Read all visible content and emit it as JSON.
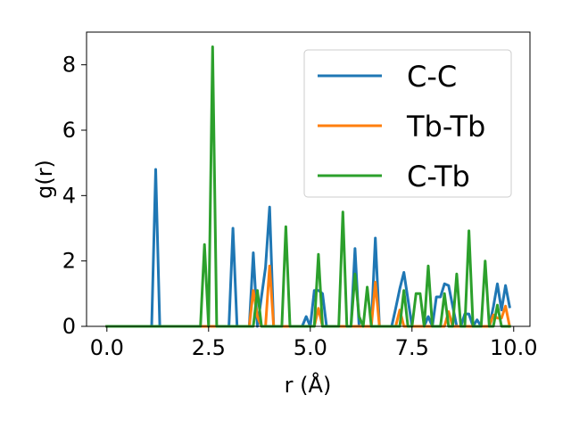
{
  "chart_data": {
    "type": "line",
    "title": "",
    "xlabel": "r (Å)",
    "ylabel": "g(r)",
    "xlim": [
      -0.5,
      10.4
    ],
    "ylim": [
      0,
      9
    ],
    "xticks": [
      0.0,
      2.5,
      5.0,
      7.5,
      10.0
    ],
    "xtick_labels": [
      "0.0",
      "2.5",
      "5.0",
      "7.5",
      "10.0"
    ],
    "yticks": [
      0,
      2,
      4,
      6,
      8
    ],
    "ytick_labels": [
      "0",
      "2",
      "4",
      "6",
      "8"
    ],
    "grid": false,
    "legend_position": "top-right",
    "series": [
      {
        "name": "C-C",
        "color": "#1f77b4",
        "x": [
          0.0,
          1.1,
          1.2,
          1.3,
          3.0,
          3.1,
          3.2,
          3.5,
          3.6,
          3.7,
          3.9,
          4.0,
          4.1,
          4.8,
          4.9,
          5.0,
          5.1,
          5.2,
          5.3,
          5.4,
          6.0,
          6.1,
          6.2,
          6.3,
          6.5,
          6.6,
          6.7,
          7.0,
          7.1,
          7.2,
          7.3,
          7.5,
          7.6,
          7.7,
          7.8,
          7.9,
          8.0,
          8.1,
          8.2,
          8.3,
          8.4,
          8.6,
          8.7,
          8.8,
          8.9,
          9.0,
          9.1,
          9.2,
          9.4,
          9.5,
          9.6,
          9.7,
          9.8,
          9.9
        ],
        "values": [
          0,
          0,
          4.8,
          0,
          0,
          3.0,
          0,
          0,
          2.25,
          0,
          1.8,
          3.65,
          0,
          0,
          0.3,
          0,
          1.1,
          1.1,
          1.0,
          0,
          0,
          2.38,
          0,
          0,
          0,
          2.7,
          0,
          0,
          0.55,
          1.15,
          1.65,
          0,
          0,
          0,
          0,
          0.3,
          0,
          0.9,
          0.9,
          1.3,
          1.25,
          0,
          0,
          0.38,
          0.38,
          0,
          0.2,
          0,
          0,
          0.6,
          1.3,
          0.5,
          1.25,
          0.6
        ]
      },
      {
        "name": "Tb-Tb",
        "color": "#ff7f0e",
        "x": [
          0.0,
          3.4,
          3.5,
          3.6,
          3.7,
          3.8,
          3.9,
          4.0,
          4.1,
          5.1,
          5.2,
          5.3,
          6.5,
          6.6,
          6.7,
          7.1,
          7.2,
          7.3,
          8.2,
          8.3,
          8.4,
          8.5,
          9.4,
          9.5,
          9.6,
          9.7,
          9.8,
          9.9
        ],
        "values": [
          0,
          0,
          0,
          1.1,
          0.3,
          0,
          0,
          1.85,
          0,
          0,
          0.55,
          0,
          0,
          1.35,
          0,
          0,
          0.5,
          0,
          0,
          0,
          0.45,
          0,
          0,
          0.35,
          0.25,
          0.25,
          0.62,
          0
        ]
      },
      {
        "name": "C-Tb",
        "color": "#2ca02c",
        "x": [
          0.0,
          2.3,
          2.4,
          2.5,
          2.6,
          2.7,
          3.6,
          3.7,
          3.8,
          4.3,
          4.4,
          4.5,
          5.1,
          5.2,
          5.3,
          5.7,
          5.8,
          5.9,
          6.0,
          6.1,
          6.2,
          6.3,
          6.4,
          6.5,
          6.6,
          7.2,
          7.3,
          7.4,
          7.5,
          7.6,
          7.7,
          7.8,
          7.9,
          8.0,
          8.1,
          8.2,
          8.3,
          8.4,
          8.5,
          8.6,
          8.7,
          8.8,
          8.9,
          9.0,
          9.1,
          9.2,
          9.3,
          9.4,
          9.5,
          9.6,
          9.7,
          9.8,
          9.9
        ],
        "values": [
          0,
          0,
          2.5,
          0,
          8.55,
          0,
          0,
          1.1,
          0,
          0,
          3.05,
          0,
          0,
          2.2,
          0,
          0,
          3.5,
          0,
          0,
          1.6,
          0.3,
          0,
          1.2,
          0,
          0,
          0,
          1.1,
          0,
          0,
          1.0,
          1.0,
          0,
          1.85,
          0,
          0,
          0,
          1.0,
          0,
          0,
          1.6,
          0,
          0,
          2.92,
          0,
          0,
          0,
          2.0,
          0,
          0,
          0.65,
          0,
          0,
          0
        ]
      }
    ]
  }
}
